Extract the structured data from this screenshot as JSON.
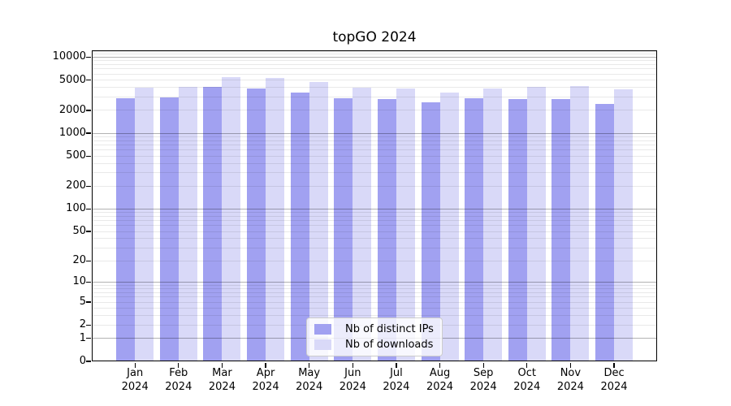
{
  "title": "topGO 2024",
  "legend": {
    "items": [
      {
        "label": "Nb of distinct IPs",
        "color": "#a1a1f1"
      },
      {
        "label": "Nb of downloads",
        "color": "#d9d9f8"
      }
    ]
  },
  "chart_data": {
    "type": "bar",
    "title": "topGO 2024",
    "categories": [
      "Jan 2024",
      "Feb 2024",
      "Mar 2024",
      "Apr 2024",
      "May 2024",
      "Jun 2024",
      "Jul 2024",
      "Aug 2024",
      "Sep 2024",
      "Oct 2024",
      "Nov 2024",
      "Dec 2024"
    ],
    "x_tick_months": [
      "Jan",
      "Feb",
      "Mar",
      "Apr",
      "May",
      "Jun",
      "Jul",
      "Aug",
      "Sep",
      "Oct",
      "Nov",
      "Dec"
    ],
    "x_tick_year": "2024",
    "series": [
      {
        "name": "Nb of distinct IPs",
        "color": "#a1a1f1",
        "values": [
          2870,
          2940,
          4100,
          3920,
          3400,
          2880,
          2800,
          2550,
          2850,
          2800,
          2800,
          2440
        ]
      },
      {
        "name": "Nb of downloads",
        "color": "#d9d9f8",
        "values": [
          3980,
          4050,
          5400,
          5300,
          4730,
          4000,
          3900,
          3450,
          3880,
          4030,
          4220,
          3740
        ]
      }
    ],
    "xlabel": "",
    "ylabel": "",
    "yscale": "log10(y+1)",
    "ylim": [
      0,
      12300
    ],
    "y_ticks": [
      0,
      1,
      2,
      5,
      10,
      20,
      50,
      100,
      200,
      500,
      1000,
      2000,
      5000,
      10000
    ],
    "y_major_gridlines": [
      1,
      10,
      100,
      1000,
      10000
    ],
    "y_minor_gridline_rule": "n x 10^k for n=2..9, k=0..3, plus 11000 and 12000",
    "grid": true,
    "legend_position": "lower center",
    "colors": {
      "major_grid": "#b0b0b0",
      "minor_grid": "#e8e8e8",
      "axis": "#000000",
      "background": "#ffffff"
    }
  }
}
